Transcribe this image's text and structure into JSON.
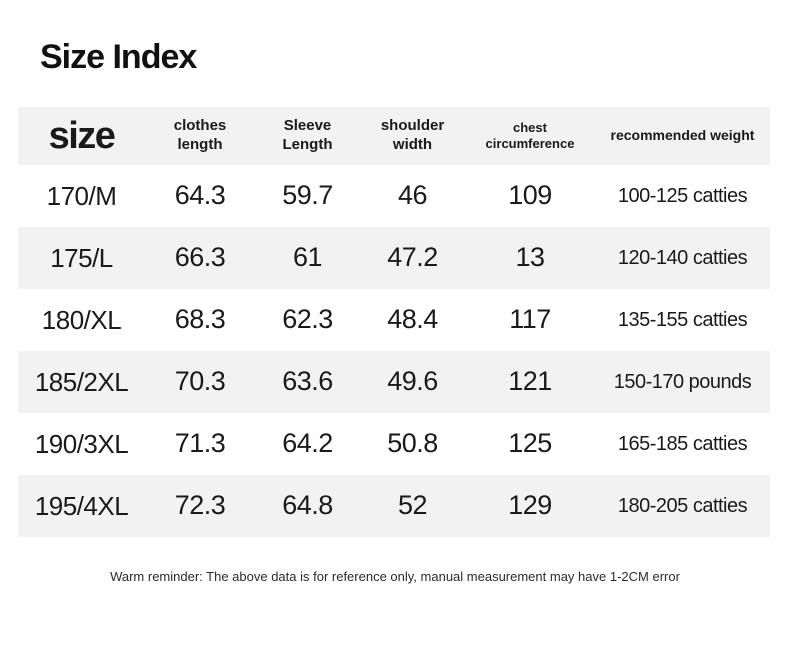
{
  "chart_data": {
    "type": "table",
    "title": "Size Index",
    "columns": [
      {
        "id": "size",
        "lines": [
          "size"
        ]
      },
      {
        "id": "clothes-length",
        "lines": [
          "clothes",
          "length"
        ]
      },
      {
        "id": "sleeve-length",
        "lines": [
          "Sleeve",
          "Length"
        ]
      },
      {
        "id": "shoulder-width",
        "lines": [
          "shoulder",
          "width"
        ]
      },
      {
        "id": "chest-circumference",
        "lines": [
          "chest",
          "circumference"
        ]
      },
      {
        "id": "recommended-weight",
        "lines": [
          "recommended weight"
        ]
      }
    ],
    "rows": [
      [
        "170/M",
        "64.3",
        "59.7",
        "46",
        "109",
        "100-125 catties"
      ],
      [
        "175/L",
        "66.3",
        "61",
        "47.2",
        "13",
        "120-140 catties"
      ],
      [
        "180/XL",
        "68.3",
        "62.3",
        "48.4",
        "117",
        "135-155 catties"
      ],
      [
        "185/2XL",
        "70.3",
        "63.6",
        "49.6",
        "121",
        "150-170 pounds"
      ],
      [
        "190/3XL",
        "71.3",
        "64.2",
        "50.8",
        "125",
        "165-185 catties"
      ],
      [
        "195/4XL",
        "72.3",
        "64.8",
        "52",
        "129",
        "180-205 catties"
      ]
    ],
    "footnote": "Warm reminder: The above data is for reference only, manual measurement may have 1-2CM error",
    "colors": {
      "row_alt_bg": "#f2f2f2",
      "text": "#1a1a1a",
      "background": "#ffffff"
    },
    "layout_hints": {
      "header_shaded": true,
      "alternating_rows": true
    }
  }
}
